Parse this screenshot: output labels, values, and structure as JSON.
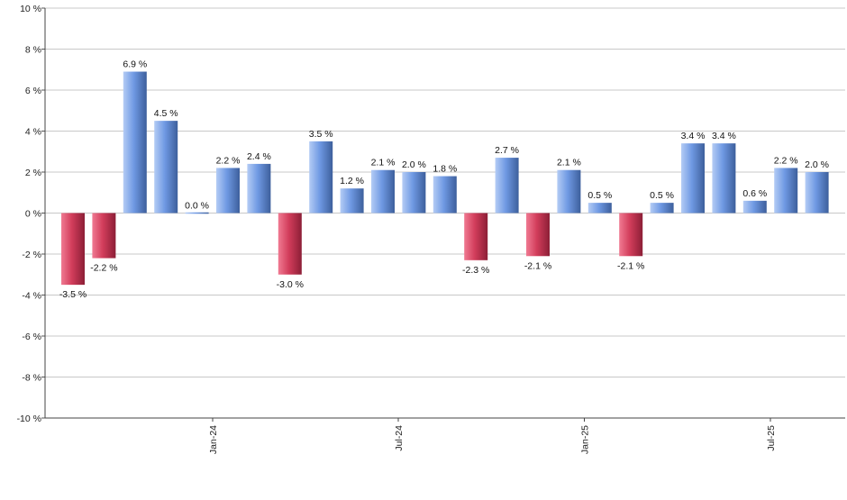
{
  "chart_data": {
    "type": "bar",
    "title": "",
    "xlabel": "",
    "ylabel": "",
    "ylim": [
      -10,
      10
    ],
    "y_ticks": [
      10,
      8,
      6,
      4,
      2,
      0,
      -2,
      -4,
      -6,
      -8,
      -10
    ],
    "y_tick_labels": [
      "10 %",
      "8 %",
      "6 %",
      "4 %",
      "2 %",
      "0 %",
      "-2 %",
      "-4 %",
      "-6 %",
      "-8 %",
      "-10 %"
    ],
    "grid": true,
    "positive_color": "#5b86d6",
    "negative_color": "#c83553",
    "x_tick_labels": [
      {
        "label": "Jan-24",
        "index": 4.5
      },
      {
        "label": "Jul-24",
        "index": 10.5
      },
      {
        "label": "Jan-25",
        "index": 16.5
      },
      {
        "label": "Jul-25",
        "index": 22.5
      }
    ],
    "values": [
      -3.5,
      -2.2,
      6.9,
      4.5,
      0.0,
      2.2,
      2.4,
      -3.0,
      3.5,
      1.2,
      2.1,
      2.0,
      1.8,
      -2.3,
      2.7,
      -2.1,
      2.1,
      0.5,
      -2.1,
      0.5,
      3.4,
      3.4,
      0.6,
      2.2,
      2.0
    ],
    "data_labels": [
      "-3.5 %",
      "-2.2 %",
      "6.9 %",
      "4.5 %",
      "0.0 %",
      "2.2 %",
      "2.4 %",
      "-3.0 %",
      "3.5 %",
      "1.2 %",
      "2.1 %",
      "2.0 %",
      "1.8 %",
      "-2.3 %",
      "2.7 %",
      "-2.1 %",
      "2.1 %",
      "0.5 %",
      "-2.1 %",
      "0.5 %",
      "3.4 %",
      "3.4 %",
      "0.6 %",
      "2.2 %",
      "2.0 %"
    ]
  }
}
